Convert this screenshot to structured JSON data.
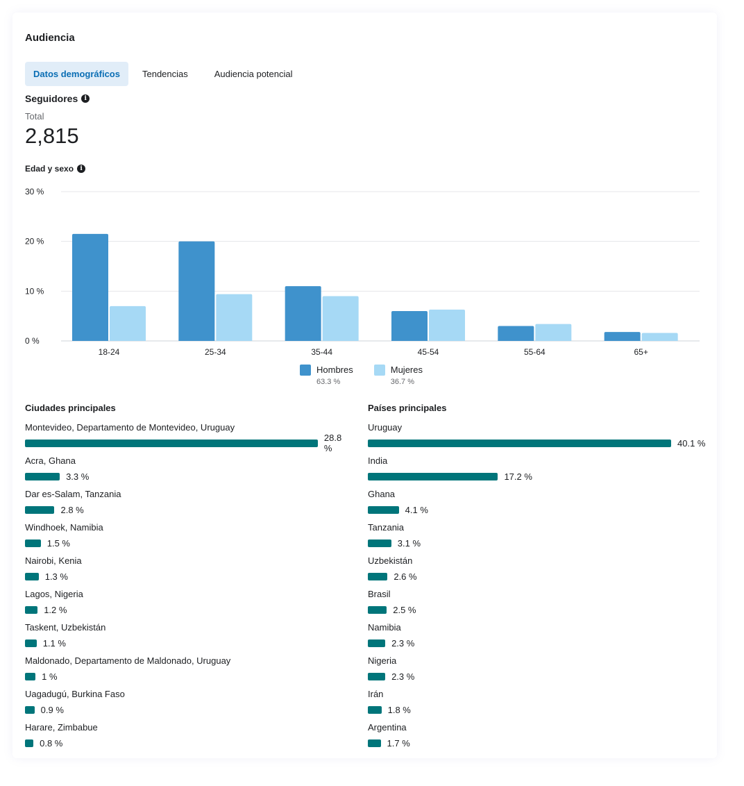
{
  "card": {
    "title": "Audiencia"
  },
  "tabs": [
    {
      "label": "Datos demográficos",
      "active": true
    },
    {
      "label": "Tendencias",
      "active": false
    },
    {
      "label": "Audiencia potencial",
      "active": false
    }
  ],
  "followers": {
    "title": "Seguidores",
    "total_label": "Total",
    "total_value": "2,815"
  },
  "age_gender": {
    "title": "Edad y sexo"
  },
  "chart_data": {
    "type": "bar",
    "categories": [
      "18-24",
      "25-34",
      "35-44",
      "45-54",
      "55-64",
      "65+"
    ],
    "series": [
      {
        "name": "Hombres",
        "values": [
          21.5,
          20.0,
          11.0,
          6.0,
          3.0,
          1.8
        ],
        "color": "#3f92cc"
      },
      {
        "name": "Mujeres",
        "values": [
          7.0,
          9.4,
          9.0,
          6.3,
          3.4,
          1.6
        ],
        "color": "#a6d9f5"
      }
    ],
    "ylim": [
      0,
      30
    ],
    "yticks": [
      "0 %",
      "10 %",
      "20 %",
      "30 %"
    ],
    "grid": true,
    "legend_position": "bottom-center"
  },
  "legend": [
    {
      "name": "Hombres",
      "share": "63.3 %",
      "color": "#3f92cc"
    },
    {
      "name": "Mujeres",
      "share": "36.7 %",
      "color": "#a6d9f5"
    }
  ],
  "cities": {
    "title": "Ciudades principales",
    "items": [
      {
        "label": "Montevideo, Departamento de Montevideo, Uruguay",
        "value": 28.8,
        "pct": "28.8 %"
      },
      {
        "label": "Acra, Ghana",
        "value": 3.3,
        "pct": "3.3 %"
      },
      {
        "label": "Dar es-Salam, Tanzania",
        "value": 2.8,
        "pct": "2.8 %"
      },
      {
        "label": "Windhoek, Namibia",
        "value": 1.5,
        "pct": "1.5 %"
      },
      {
        "label": "Nairobi, Kenia",
        "value": 1.3,
        "pct": "1.3 %"
      },
      {
        "label": "Lagos, Nigeria",
        "value": 1.2,
        "pct": "1.2 %"
      },
      {
        "label": "Taskent, Uzbekistán",
        "value": 1.1,
        "pct": "1.1 %"
      },
      {
        "label": "Maldonado, Departamento de Maldonado, Uruguay",
        "value": 1.0,
        "pct": "1 %"
      },
      {
        "label": "Uagadugú, Burkina Faso",
        "value": 0.9,
        "pct": "0.9 %"
      },
      {
        "label": "Harare, Zimbabue",
        "value": 0.8,
        "pct": "0.8 %"
      }
    ]
  },
  "countries": {
    "title": "Países principales",
    "items": [
      {
        "label": "Uruguay",
        "value": 40.1,
        "pct": "40.1 %"
      },
      {
        "label": "India",
        "value": 17.2,
        "pct": "17.2 %"
      },
      {
        "label": "Ghana",
        "value": 4.1,
        "pct": "4.1 %"
      },
      {
        "label": "Tanzania",
        "value": 3.1,
        "pct": "3.1 %"
      },
      {
        "label": "Uzbekistán",
        "value": 2.6,
        "pct": "2.6 %"
      },
      {
        "label": "Brasil",
        "value": 2.5,
        "pct": "2.5 %"
      },
      {
        "label": "Namibia",
        "value": 2.3,
        "pct": "2.3 %"
      },
      {
        "label": "Nigeria",
        "value": 2.3,
        "pct": "2.3 %"
      },
      {
        "label": "Irán",
        "value": 1.8,
        "pct": "1.8 %"
      },
      {
        "label": "Argentina",
        "value": 1.7,
        "pct": "1.7 %"
      }
    ]
  },
  "colors": {
    "accent": "#0a6eb4",
    "tab_active_bg": "#e1edf8",
    "bar_teal": "#00757a"
  },
  "icons": {
    "info": "info-icon"
  }
}
